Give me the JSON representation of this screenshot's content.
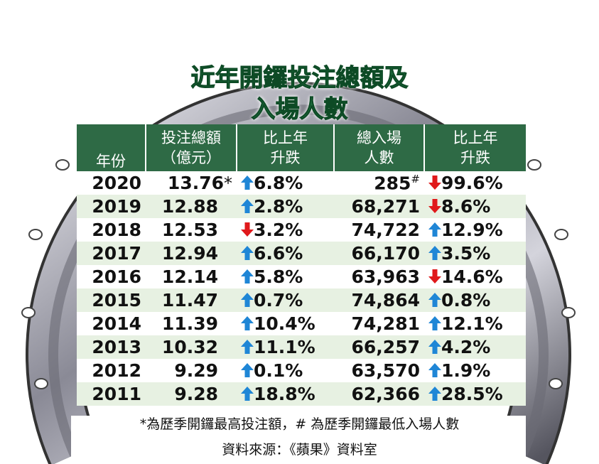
{
  "title": [
    "近年開鑼投注總額及",
    "入場人數"
  ],
  "table": {
    "headers": [
      [
        "年份"
      ],
      [
        "投注總額",
        "（億元）"
      ],
      [
        "比上年",
        "升跌"
      ],
      [
        "總入場",
        "人數"
      ],
      [
        "比上年",
        "升跌"
      ]
    ],
    "rows": [
      {
        "year": "2020",
        "bet": "13.76",
        "bet_note": "*",
        "bet_change": {
          "text": "6.8%",
          "dir": "up"
        },
        "attend": "285",
        "attend_note": "#",
        "attend_change": {
          "text": "99.6%",
          "dir": "down"
        }
      },
      {
        "year": "2019",
        "bet": "12.88",
        "bet_change": {
          "text": "2.8%",
          "dir": "up"
        },
        "attend": "68,271",
        "attend_change": {
          "text": "8.6%",
          "dir": "down"
        }
      },
      {
        "year": "2018",
        "bet": "12.53",
        "bet_change": {
          "text": "3.2%",
          "dir": "down"
        },
        "attend": "74,722",
        "attend_change": {
          "text": "12.9%",
          "dir": "up"
        }
      },
      {
        "year": "2017",
        "bet": "12.94",
        "bet_change": {
          "text": "6.6%",
          "dir": "up"
        },
        "attend": "66,170",
        "attend_change": {
          "text": "3.5%",
          "dir": "up"
        }
      },
      {
        "year": "2016",
        "bet": "12.14",
        "bet_change": {
          "text": "5.8%",
          "dir": "up"
        },
        "attend": "63,963",
        "attend_change": {
          "text": "14.6%",
          "dir": "down"
        }
      },
      {
        "year": "2015",
        "bet": "11.47",
        "bet_change": {
          "text": "0.7%",
          "dir": "up"
        },
        "attend": "74,864",
        "attend_change": {
          "text": "0.8%",
          "dir": "up"
        }
      },
      {
        "year": "2014",
        "bet": "11.39",
        "bet_change": {
          "text": "10.4%",
          "dir": "up"
        },
        "attend": "74,281",
        "attend_change": {
          "text": "12.1%",
          "dir": "up"
        }
      },
      {
        "year": "2013",
        "bet": "10.32",
        "bet_change": {
          "text": "11.1%",
          "dir": "up"
        },
        "attend": "66,257",
        "attend_change": {
          "text": "4.2%",
          "dir": "up"
        }
      },
      {
        "year": "2012",
        "bet": "9.29",
        "bet_change": {
          "text": "0.1%",
          "dir": "up"
        },
        "attend": "63,570",
        "attend_change": {
          "text": "1.9%",
          "dir": "up"
        }
      },
      {
        "year": "2011",
        "bet": "9.28",
        "bet_change": {
          "text": "18.8%",
          "dir": "up"
        },
        "attend": "62,366",
        "attend_change": {
          "text": "28.5%",
          "dir": "up"
        }
      }
    ]
  },
  "footnote": "*為歷季開鑼最高投注額，# 為歷季開鑼最低入場人數",
  "source": "資料來源：《蘋果》資料室"
}
